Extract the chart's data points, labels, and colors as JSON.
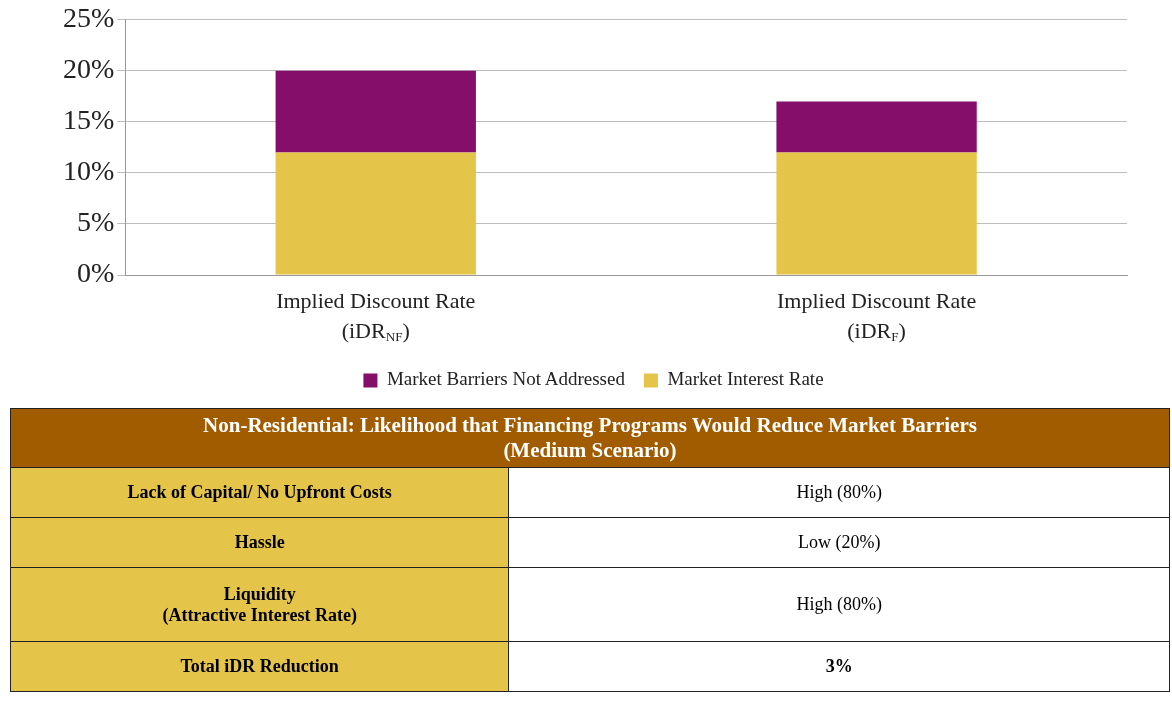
{
  "chart_data": [
    {
      "type": "bar",
      "stacked": true,
      "categories": [
        "Implied Discount Rate (iDR$_{NF}$)",
        "Implied Discount Rate (iDR$_{F}$)"
      ],
      "series": [
        {
          "name": "Market Interest Rate",
          "color": "#e4c54a",
          "values": [
            12,
            12
          ]
        },
        {
          "name": "Market Barriers Not Addressed",
          "color": "#850e6b",
          "values": [
            8,
            5
          ]
        }
      ],
      "ylim": [
        0,
        25
      ],
      "yticks": [
        {
          "value": 0,
          "label": "0%"
        },
        {
          "value": 5,
          "label": "5%"
        },
        {
          "value": 10,
          "label": "10%"
        },
        {
          "value": 15,
          "label": "15%"
        },
        {
          "value": 20,
          "label": "20%"
        },
        {
          "value": 25,
          "label": "25%"
        }
      ],
      "grid": "y",
      "legend": "bottom"
    },
    {
      "type": "other",
      "title": "Non-Residential: Likelihood that Financing Programs Would Reduce Market Barriers",
      "subtitle": "(Medium Scenario)",
      "annotations": [
        "Lack of Capital/ No Upfront Costs",
        "High (80%)",
        "Hassle",
        "Low (20%)",
        "Liquidity\n(Attractive Interest Rate)",
        "High (80%)",
        "Total iDR Reduction",
        "3%"
      ]
    }
  ]
}
